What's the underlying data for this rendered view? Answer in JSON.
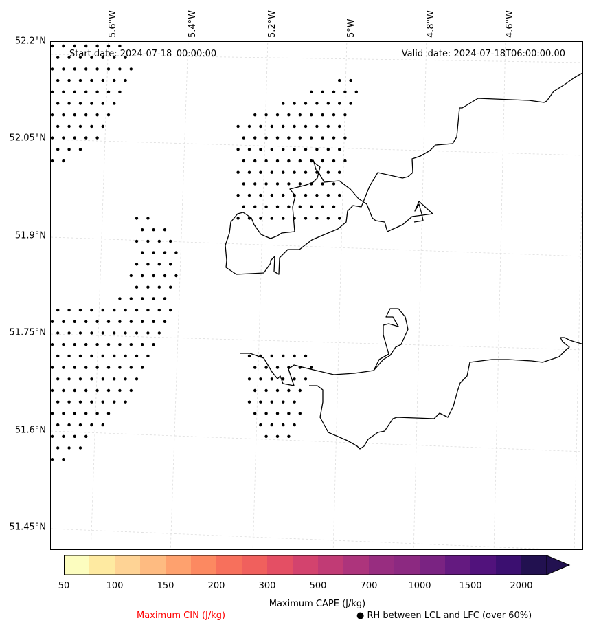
{
  "map": {
    "start_date_text": "Start date: 2024-07-18_00:00:00",
    "valid_date_text": "Valid_date: 2024-07-18T06:00:00.00",
    "lat_labels": [
      "52.2°N",
      "52.05°N",
      "51.9°N",
      "51.75°N",
      "51.6°N",
      "51.45°N"
    ],
    "lon_labels": [
      "5.6°W",
      "5.4°W",
      "5.2°W",
      "5°W",
      "4.8°W",
      "4.6°W"
    ],
    "coastline_color": "#000000",
    "grid_color": "#dddddd"
  },
  "colorbar": {
    "label": "Maximum CAPE (J/kg)",
    "tick_labels": [
      "50",
      "100",
      "150",
      "200",
      "300",
      "500",
      "700",
      "1000",
      "1500",
      "2000"
    ],
    "colors": [
      "#fcfdbf",
      "#feeaa1",
      "#fed395",
      "#febb81",
      "#fea16e",
      "#fc8961",
      "#f7705c",
      "#f0605d",
      "#e44f64",
      "#d3436e",
      "#c13b75",
      "#ad347c",
      "#982d80",
      "#8c2981",
      "#7a2382",
      "#641a80",
      "#51127c",
      "#3b0f70",
      "#221150"
    ],
    "extend_color": "#221150"
  },
  "legend": {
    "cin_label": "Maximum CIN (J/kg)",
    "cin_color": "#ff0000",
    "rh_label": "● RH between LCL and LFC (over 60%)"
  }
}
